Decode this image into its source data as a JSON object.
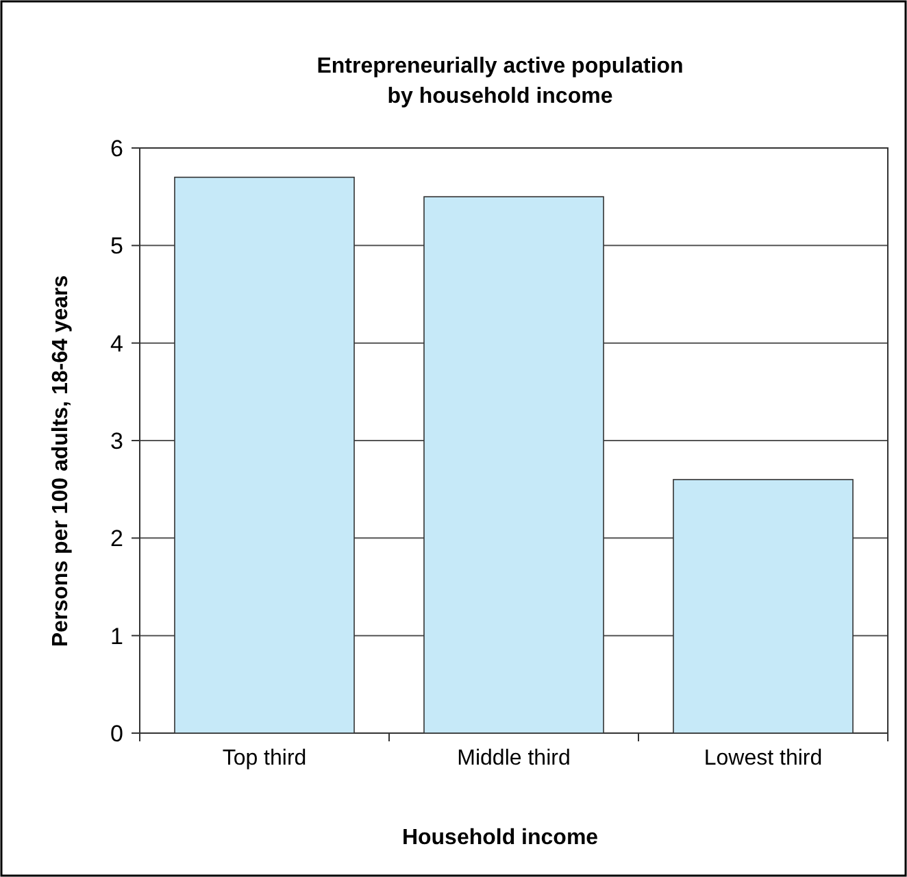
{
  "chart_data": {
    "type": "bar",
    "title": "Entrepreneurially active population\nby household income",
    "xlabel": "Household income",
    "ylabel": "Persons per 100 adults, 18-64 years",
    "categories": [
      "Top third",
      "Middle third",
      "Lowest third"
    ],
    "values": [
      5.7,
      5.5,
      2.6
    ],
    "color": "#c6e9f8",
    "ylim": [
      0,
      6
    ],
    "yticks": [
      0,
      1,
      2,
      3,
      4,
      5,
      6
    ],
    "grid": "y"
  }
}
